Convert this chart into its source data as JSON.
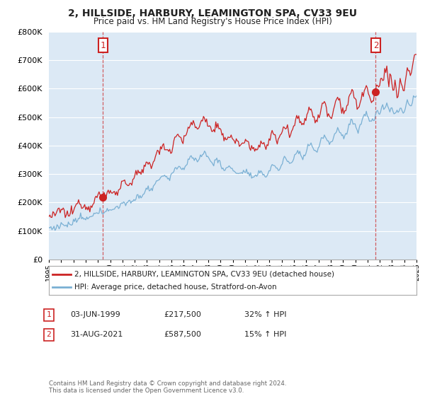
{
  "title": "2, HILLSIDE, HARBURY, LEAMINGTON SPA, CV33 9EU",
  "subtitle": "Price paid vs. HM Land Registry's House Price Index (HPI)",
  "legend_line1": "2, HILLSIDE, HARBURY, LEAMINGTON SPA, CV33 9EU (detached house)",
  "legend_line2": "HPI: Average price, detached house, Stratford-on-Avon",
  "annotation1_label": "1",
  "annotation1_date": "03-JUN-1999",
  "annotation1_price": "£217,500",
  "annotation1_hpi": "32% ↑ HPI",
  "annotation1_year": 1999.42,
  "annotation1_value": 217500,
  "annotation2_label": "2",
  "annotation2_date": "31-AUG-2021",
  "annotation2_price": "£587,500",
  "annotation2_hpi": "15% ↑ HPI",
  "annotation2_year": 2021.67,
  "annotation2_value": 587500,
  "footer": "Contains HM Land Registry data © Crown copyright and database right 2024.\nThis data is licensed under the Open Government Licence v3.0.",
  "red_color": "#cc2222",
  "blue_color": "#7ab0d4",
  "plot_bg_color": "#dce9f5",
  "background_color": "#ffffff",
  "grid_color": "#ffffff",
  "ylim": [
    0,
    800000
  ],
  "yticks": [
    0,
    100000,
    200000,
    300000,
    400000,
    500000,
    600000,
    700000,
    800000
  ],
  "year_start": 1995,
  "year_end": 2025
}
